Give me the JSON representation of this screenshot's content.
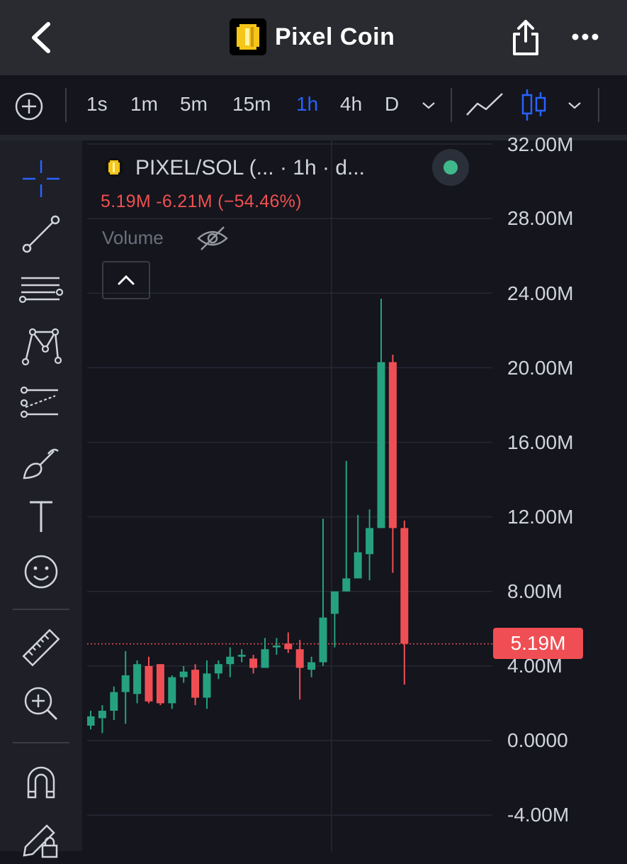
{
  "header": {
    "title": "Pixel Coin"
  },
  "toolbar": {
    "timeframes": [
      "1s",
      "1m",
      "5m",
      "15m",
      "1h",
      "4h",
      "D"
    ],
    "active_timeframe": "1h"
  },
  "legend": {
    "pair": "PIXEL/SOL (...  · 1h · d...",
    "ohlc": "5.19M  -6.21M (−54.46%)",
    "volume_label": "Volume",
    "status_color": "#3fb88c"
  },
  "colors": {
    "up": "#26a17f",
    "down": "#ef4f54",
    "accent": "#2962ff"
  },
  "icons": [
    "back-arrow-icon",
    "pixel-coin-logo-icon",
    "share-icon",
    "more-icon",
    "add-indicator-icon",
    "chevron-down-icon",
    "line-chart-icon",
    "candlestick-icon",
    "crosshair-icon",
    "trend-line-icon",
    "fib-retracement-icon",
    "pattern-icon",
    "prediction-icon",
    "brush-icon",
    "text-tool-icon",
    "emoji-icon",
    "ruler-icon",
    "zoom-in-icon",
    "magnet-icon",
    "lock-drawing-icon",
    "eye-off-icon",
    "chevron-up-icon"
  ],
  "chart_data": {
    "type": "candlestick",
    "y_axis_labels": [
      "32.00M",
      "28.00M",
      "24.00M",
      "20.00M",
      "16.00M",
      "12.00M",
      "8.00M",
      "4.00M",
      "0.0000",
      "-4.00M"
    ],
    "y_unit": "M",
    "ylim": [
      -6,
      32
    ],
    "current_price": 5.19,
    "current_price_label": "5.19M",
    "grid": true,
    "candles": [
      {
        "o": 0.8,
        "h": 1.6,
        "l": 0.6,
        "c": 1.3
      },
      {
        "o": 1.2,
        "h": 1.9,
        "l": 0.4,
        "c": 1.6
      },
      {
        "o": 1.6,
        "h": 2.9,
        "l": 1.1,
        "c": 2.6
      },
      {
        "o": 2.6,
        "h": 4.8,
        "l": 0.9,
        "c": 3.5
      },
      {
        "o": 2.5,
        "h": 4.3,
        "l": 2.0,
        "c": 4.1
      },
      {
        "o": 4.0,
        "h": 4.5,
        "l": 2.0,
        "c": 2.1
      },
      {
        "o": 4.1,
        "h": 4.1,
        "l": 1.9,
        "c": 2.0
      },
      {
        "o": 2.0,
        "h": 3.5,
        "l": 1.7,
        "c": 3.4
      },
      {
        "o": 3.4,
        "h": 4.0,
        "l": 3.1,
        "c": 3.7
      },
      {
        "o": 3.8,
        "h": 4.1,
        "l": 1.9,
        "c": 2.3
      },
      {
        "o": 2.3,
        "h": 4.3,
        "l": 1.7,
        "c": 3.6
      },
      {
        "o": 3.6,
        "h": 4.3,
        "l": 3.3,
        "c": 4.1
      },
      {
        "o": 4.1,
        "h": 5.0,
        "l": 3.4,
        "c": 4.5
      },
      {
        "o": 4.5,
        "h": 4.9,
        "l": 4.2,
        "c": 4.6
      },
      {
        "o": 4.4,
        "h": 4.6,
        "l": 3.6,
        "c": 3.9
      },
      {
        "o": 3.9,
        "h": 5.5,
        "l": 3.9,
        "c": 4.9
      },
      {
        "o": 5.0,
        "h": 5.5,
        "l": 4.6,
        "c": 5.1
      },
      {
        "o": 5.2,
        "h": 5.8,
        "l": 4.7,
        "c": 4.9
      },
      {
        "o": 4.9,
        "h": 5.4,
        "l": 2.2,
        "c": 3.9
      },
      {
        "o": 3.8,
        "h": 4.5,
        "l": 3.4,
        "c": 4.2
      },
      {
        "o": 4.2,
        "h": 11.9,
        "l": 4.0,
        "c": 6.6
      },
      {
        "o": 6.8,
        "h": 8.0,
        "l": 5.0,
        "c": 8.0
      },
      {
        "o": 8.0,
        "h": 15.0,
        "l": 8.0,
        "c": 8.7
      },
      {
        "o": 8.7,
        "h": 12.1,
        "l": 8.7,
        "c": 10.1
      },
      {
        "o": 10.0,
        "h": 12.4,
        "l": 8.6,
        "c": 11.4
      },
      {
        "o": 11.4,
        "h": 23.7,
        "l": 11.4,
        "c": 20.3
      },
      {
        "o": 20.3,
        "h": 20.7,
        "l": 9.0,
        "c": 11.4
      },
      {
        "o": 11.4,
        "h": 11.8,
        "l": 3.0,
        "c": 5.2
      }
    ]
  }
}
